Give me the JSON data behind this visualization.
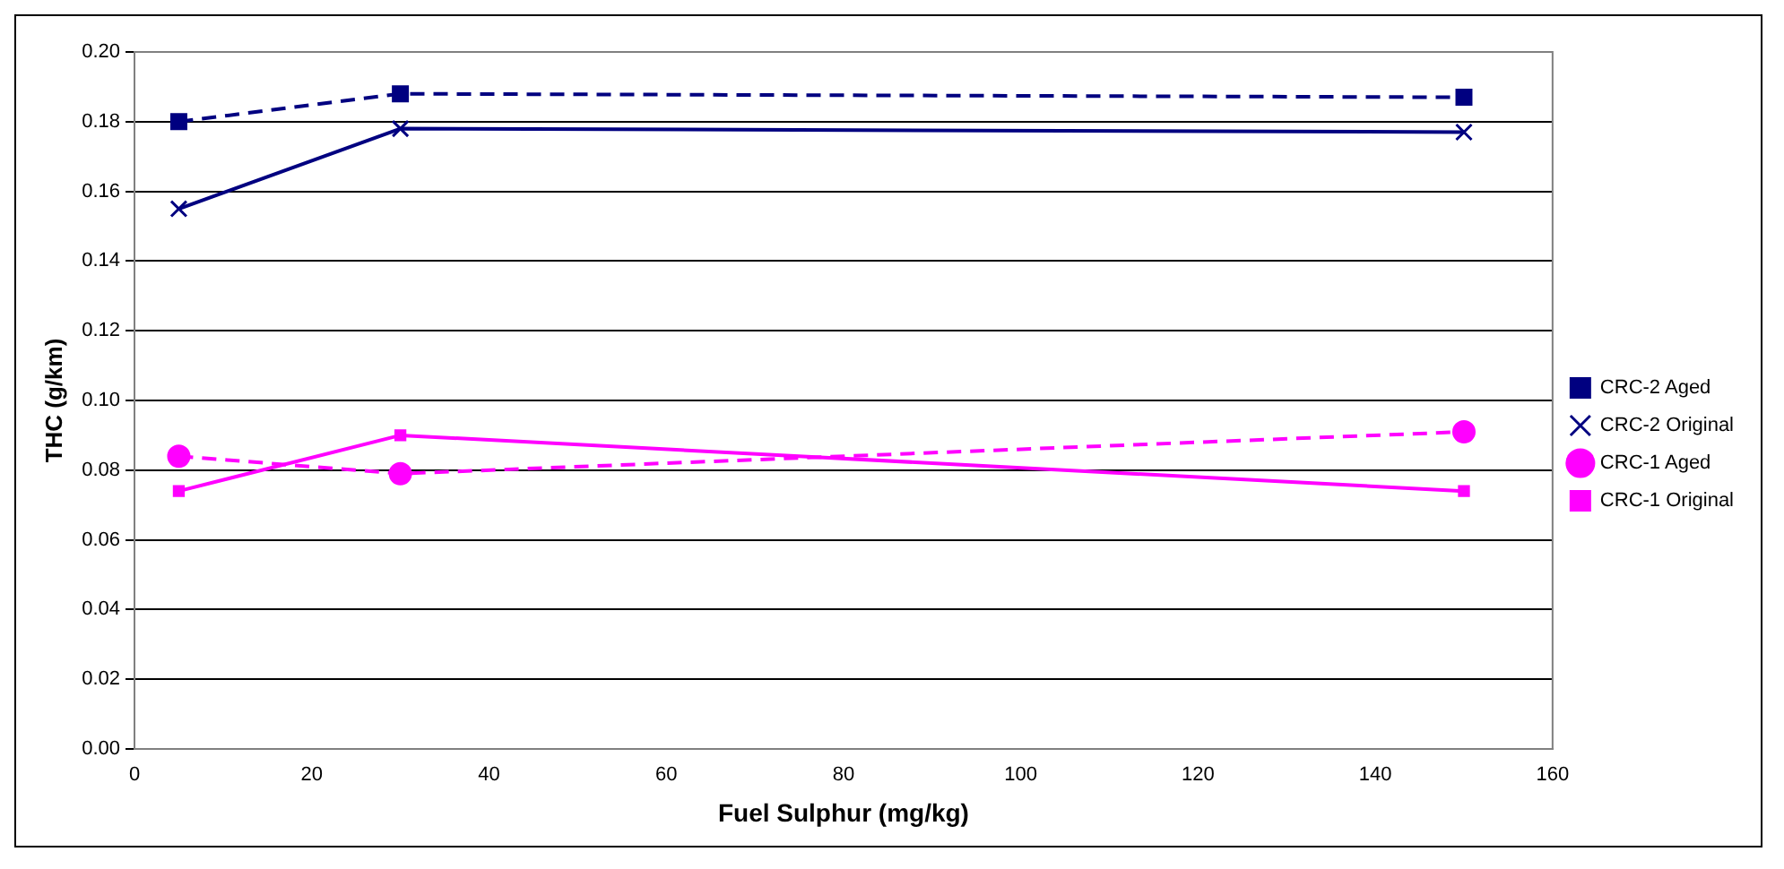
{
  "chart_data": {
    "type": "line",
    "xlabel": "Fuel Sulphur (mg/kg)",
    "ylabel": "THC (g/km)",
    "x": [
      5,
      30,
      150
    ],
    "xlim": [
      0,
      160
    ],
    "xticks": [
      0,
      20,
      40,
      60,
      80,
      100,
      120,
      140,
      160
    ],
    "ylim": [
      0,
      0.2
    ],
    "yticks": [
      {
        "value": 0,
        "label": "0.00"
      },
      {
        "value": 0.02,
        "label": "0.02"
      },
      {
        "value": 0.04,
        "label": "0.04"
      },
      {
        "value": 0.06,
        "label": "0.06"
      },
      {
        "value": 0.08,
        "label": "0.08"
      },
      {
        "value": 0.1,
        "label": "0.10"
      },
      {
        "value": 0.12,
        "label": "0.12"
      },
      {
        "value": 0.14,
        "label": "0.14"
      },
      {
        "value": 0.16,
        "label": "0.16"
      },
      {
        "value": 0.18,
        "label": "0.18"
      },
      {
        "value": 0.2,
        "label": "0.20"
      }
    ],
    "grid": "y",
    "legend": "right",
    "series": [
      {
        "name": "CRC-2 Aged",
        "color": "#000080",
        "values": [
          0.18,
          0.188,
          0.187
        ],
        "marker": "square",
        "line_style": "dashed"
      },
      {
        "name": "CRC-2 Original",
        "color": "#000080",
        "values": [
          0.155,
          0.178,
          0.177
        ],
        "marker": "cross",
        "line_style": "solid"
      },
      {
        "name": "CRC-1 Aged",
        "color": "#ff00ff",
        "values": [
          0.084,
          0.079,
          0.091
        ],
        "marker": "circle",
        "line_style": "dashed"
      },
      {
        "name": "CRC-1 Original",
        "color": "#ff00ff",
        "values": [
          0.074,
          0.09,
          0.074
        ],
        "marker": "square",
        "line_style": "solid"
      }
    ]
  }
}
